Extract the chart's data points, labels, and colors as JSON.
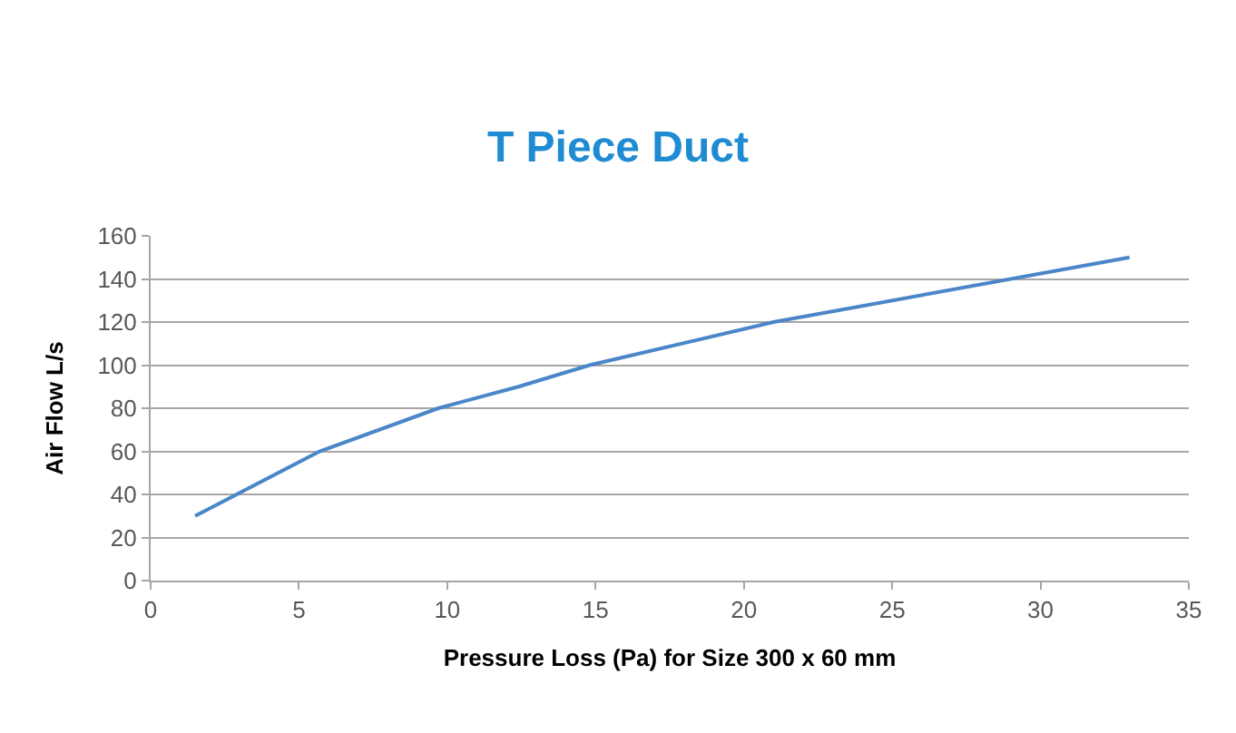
{
  "chart_data": {
    "type": "line",
    "title": "T Piece Duct",
    "xlabel": "Pressure Loss (Pa) for Size 300 x 60 mm",
    "ylabel": "Air Flow L/s",
    "x": [
      1.5,
      5.7,
      9.7,
      12.4,
      14.8,
      21.0,
      33.0
    ],
    "series": [
      {
        "color": "#4a86c8",
        "values": [
          30,
          60,
          80,
          90,
          100,
          120,
          150
        ]
      }
    ],
    "xlim": [
      0,
      35
    ],
    "xticks": [
      0,
      5,
      10,
      15,
      20,
      25,
      30,
      35
    ],
    "ylim": [
      0,
      160
    ],
    "yticks": [
      0,
      20,
      40,
      60,
      80,
      100,
      120,
      140,
      160
    ],
    "grid": "y",
    "legend": false,
    "marker": "none",
    "line_style": "solid"
  }
}
